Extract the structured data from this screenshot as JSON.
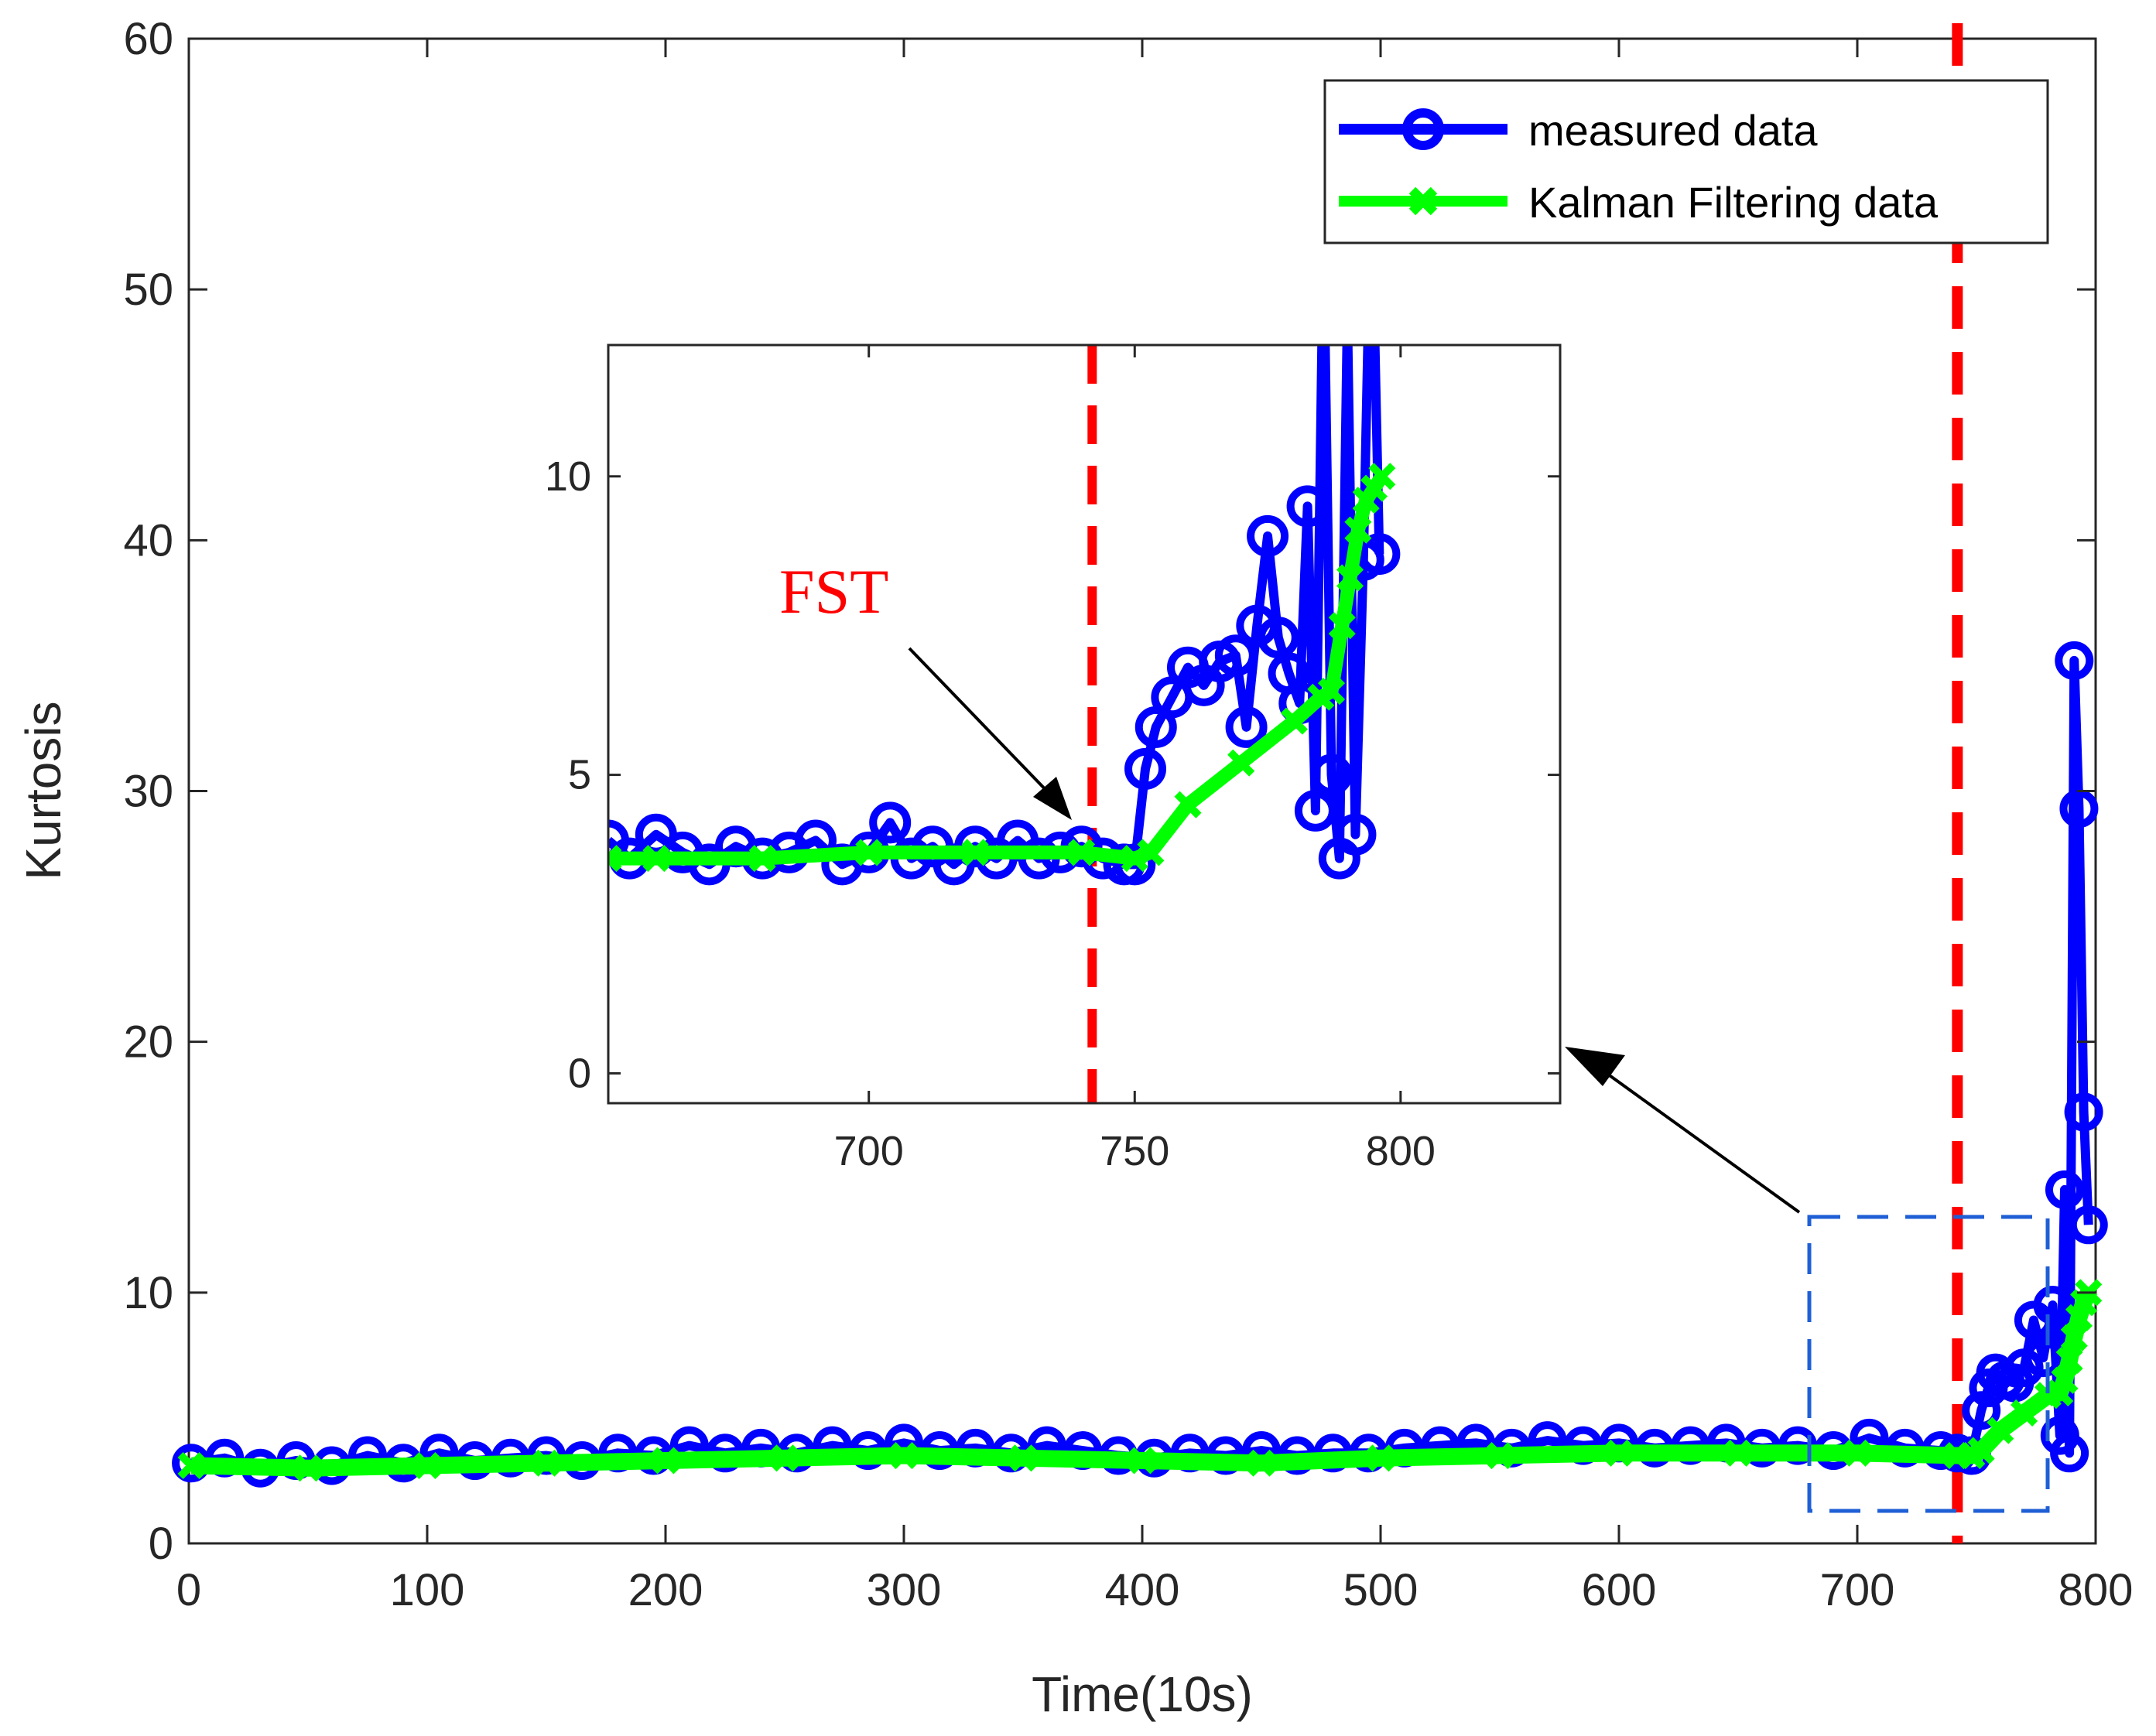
{
  "chart_data": [
    {
      "type": "line",
      "role": "main",
      "xlabel": "Time(10s)",
      "ylabel": "Kurtosis",
      "xlim": [
        0,
        800
      ],
      "ylim": [
        0,
        60
      ],
      "xticks": [
        0,
        100,
        200,
        300,
        400,
        500,
        600,
        700,
        800
      ],
      "yticks": [
        0,
        10,
        20,
        30,
        40,
        50,
        60
      ],
      "grid": false,
      "legend_position": "top-right",
      "fst_x": 742,
      "zoom_box": {
        "x": [
          680,
          780
        ],
        "y": [
          1.3,
          13
        ]
      },
      "series": [
        {
          "name": "measured data",
          "color": "#0000ff",
          "marker": "circle",
          "x": [
            1,
            15,
            30,
            45,
            60,
            75,
            90,
            105,
            120,
            135,
            150,
            165,
            180,
            195,
            210,
            225,
            240,
            255,
            270,
            285,
            300,
            315,
            330,
            345,
            360,
            375,
            390,
            405,
            420,
            435,
            450,
            465,
            480,
            495,
            510,
            525,
            540,
            555,
            570,
            585,
            600,
            615,
            630,
            645,
            660,
            675,
            690,
            705,
            720,
            735,
            742,
            748,
            752,
            755,
            758,
            762,
            766,
            770,
            774,
            778,
            782,
            785,
            787,
            789,
            791,
            793,
            795,
            797
          ],
          "y": [
            3.2,
            3.4,
            3.0,
            3.3,
            3.1,
            3.5,
            3.2,
            3.6,
            3.3,
            3.4,
            3.5,
            3.3,
            3.6,
            3.5,
            3.9,
            3.6,
            3.8,
            3.6,
            3.9,
            3.7,
            4.0,
            3.7,
            3.8,
            3.6,
            3.9,
            3.7,
            3.5,
            3.4,
            3.6,
            3.5,
            3.7,
            3.5,
            3.6,
            3.6,
            3.8,
            3.9,
            4.0,
            3.8,
            4.1,
            3.9,
            4.0,
            3.8,
            3.9,
            4.0,
            3.8,
            3.9,
            3.7,
            4.2,
            3.8,
            3.7,
            3.6,
            3.5,
            5.3,
            6.2,
            6.8,
            6.5,
            6.4,
            7.0,
            8.9,
            7.4,
            9.5,
            4.3,
            14.1,
            3.6,
            35.2,
            29.3,
            17.2,
            12.7
          ]
        },
        {
          "name": "Kalman Filtering data",
          "color": "#00ff00",
          "marker": "x",
          "x": [
            1,
            50,
            100,
            150,
            200,
            250,
            300,
            350,
            400,
            450,
            500,
            550,
            600,
            650,
            700,
            742,
            748,
            752,
            760,
            770,
            780,
            785,
            787,
            789,
            791,
            793,
            795,
            797
          ],
          "y": [
            3.1,
            3.0,
            3.1,
            3.2,
            3.3,
            3.4,
            3.5,
            3.4,
            3.3,
            3.2,
            3.4,
            3.5,
            3.6,
            3.6,
            3.6,
            3.5,
            3.5,
            3.7,
            4.5,
            5.2,
            5.9,
            6.0,
            6.5,
            7.3,
            8.2,
            9.0,
            9.6,
            10.0
          ]
        }
      ]
    },
    {
      "type": "line",
      "role": "inset",
      "xlim": [
        651,
        830
      ],
      "ylim": [
        -0.5,
        12.2
      ],
      "xticks": [
        700,
        750,
        800
      ],
      "yticks": [
        0,
        5,
        10
      ],
      "fst_x": 742,
      "annotation": "FST",
      "series": [
        {
          "name": "measured data",
          "x": [
            651,
            655,
            660,
            665,
            670,
            675,
            680,
            685,
            690,
            695,
            700,
            704,
            708,
            712,
            716,
            720,
            724,
            728,
            732,
            736,
            740,
            744,
            748,
            750,
            752,
            754,
            757,
            760,
            763,
            766,
            769,
            771,
            773,
            775,
            777,
            779,
            781,
            782.5,
            784,
            785.5,
            787,
            788.5,
            790,
            791.5,
            793,
            794.5,
            796
          ],
          "y": [
            3.9,
            3.6,
            4.0,
            3.7,
            3.5,
            3.8,
            3.6,
            3.7,
            3.9,
            3.5,
            3.7,
            4.2,
            3.6,
            3.8,
            3.5,
            3.8,
            3.6,
            3.9,
            3.6,
            3.7,
            3.8,
            3.6,
            3.5,
            3.5,
            5.1,
            5.8,
            6.3,
            6.8,
            6.5,
            6.9,
            7.0,
            5.8,
            7.5,
            9.0,
            7.3,
            6.7,
            6.2,
            9.5,
            4.4,
            14.1,
            5.0,
            3.6,
            12.7,
            4.0,
            8.6,
            15.0,
            8.7
          ]
        },
        {
          "name": "Kalman Filtering data",
          "x": [
            651,
            660,
            680,
            700,
            720,
            740,
            750,
            753,
            760,
            770,
            780,
            785,
            787,
            789,
            790.5,
            792,
            793.5,
            795,
            796.5
          ],
          "y": [
            3.6,
            3.6,
            3.6,
            3.7,
            3.7,
            3.7,
            3.6,
            3.7,
            4.5,
            5.2,
            5.9,
            6.3,
            6.4,
            7.5,
            8.3,
            9.1,
            9.6,
            9.8,
            10.0
          ]
        }
      ]
    }
  ]
}
